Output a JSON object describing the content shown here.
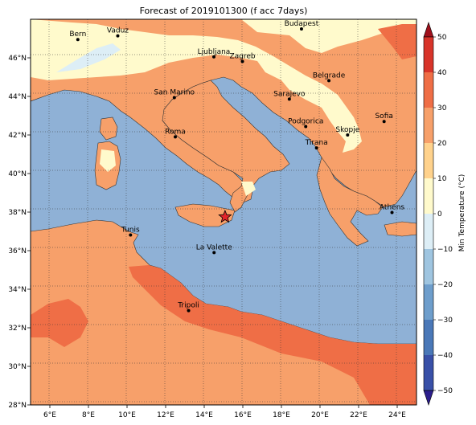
{
  "title": "Forecast of 2019101300 (f acc 7days)",
  "map": {
    "lon_ticks": [
      "6°E",
      "8°E",
      "10°E",
      "12°E",
      "14°E",
      "16°E",
      "18°E",
      "20°E",
      "22°E",
      "24°E"
    ],
    "lat_ticks": [
      "46°N",
      "44°N",
      "42°N",
      "40°N",
      "38°N",
      "36°N",
      "34°N",
      "32°N",
      "30°N",
      "28°N"
    ],
    "sea_color": "#8fb1d6",
    "grid": "dotted",
    "cities": [
      {
        "name": "Bern",
        "lon": 7.45,
        "lat": 46.95
      },
      {
        "name": "Vaduz",
        "lon": 9.52,
        "lat": 47.14
      },
      {
        "name": "Budapest",
        "lon": 19.04,
        "lat": 47.5
      },
      {
        "name": "Ljubljana",
        "lon": 14.5,
        "lat": 46.05
      },
      {
        "name": "Zagreb",
        "lon": 15.98,
        "lat": 45.81
      },
      {
        "name": "Belgrade",
        "lon": 20.46,
        "lat": 44.82
      },
      {
        "name": "San Marino",
        "lon": 12.45,
        "lat": 43.94
      },
      {
        "name": "Sarajevo",
        "lon": 18.41,
        "lat": 43.86
      },
      {
        "name": "Sofia",
        "lon": 23.32,
        "lat": 42.7
      },
      {
        "name": "Roma",
        "lon": 12.5,
        "lat": 41.9
      },
      {
        "name": "Podgorica",
        "lon": 19.26,
        "lat": 42.44
      },
      {
        "name": "Skopje",
        "lon": 21.43,
        "lat": 42.0
      },
      {
        "name": "Tirana",
        "lon": 19.82,
        "lat": 41.33
      },
      {
        "name": "Athens",
        "lon": 23.73,
        "lat": 37.98
      },
      {
        "name": "Tunis",
        "lon": 10.18,
        "lat": 36.81
      },
      {
        "name": "La Valette",
        "lon": 14.51,
        "lat": 35.9
      },
      {
        "name": "Tripoli",
        "lon": 13.19,
        "lat": 32.89
      }
    ],
    "marker": {
      "symbol": "star",
      "lon": 15.08,
      "lat": 37.75,
      "color": "#e3242b"
    }
  },
  "colorbar": {
    "label": "Min Temperature (°C)",
    "ticks": [
      "50",
      "40",
      "30",
      "20",
      "10",
      "0",
      "−10",
      "−20",
      "−30",
      "−40",
      "−50"
    ],
    "colors": [
      "#2c1e8c",
      "#3950a8",
      "#4a78b8",
      "#6e9ecc",
      "#9fc5e0",
      "#ddeef6",
      "#fffacc",
      "#ffd28c",
      "#f7a06a",
      "#ef6e46",
      "#d8342a",
      "#a0101c"
    ]
  }
}
